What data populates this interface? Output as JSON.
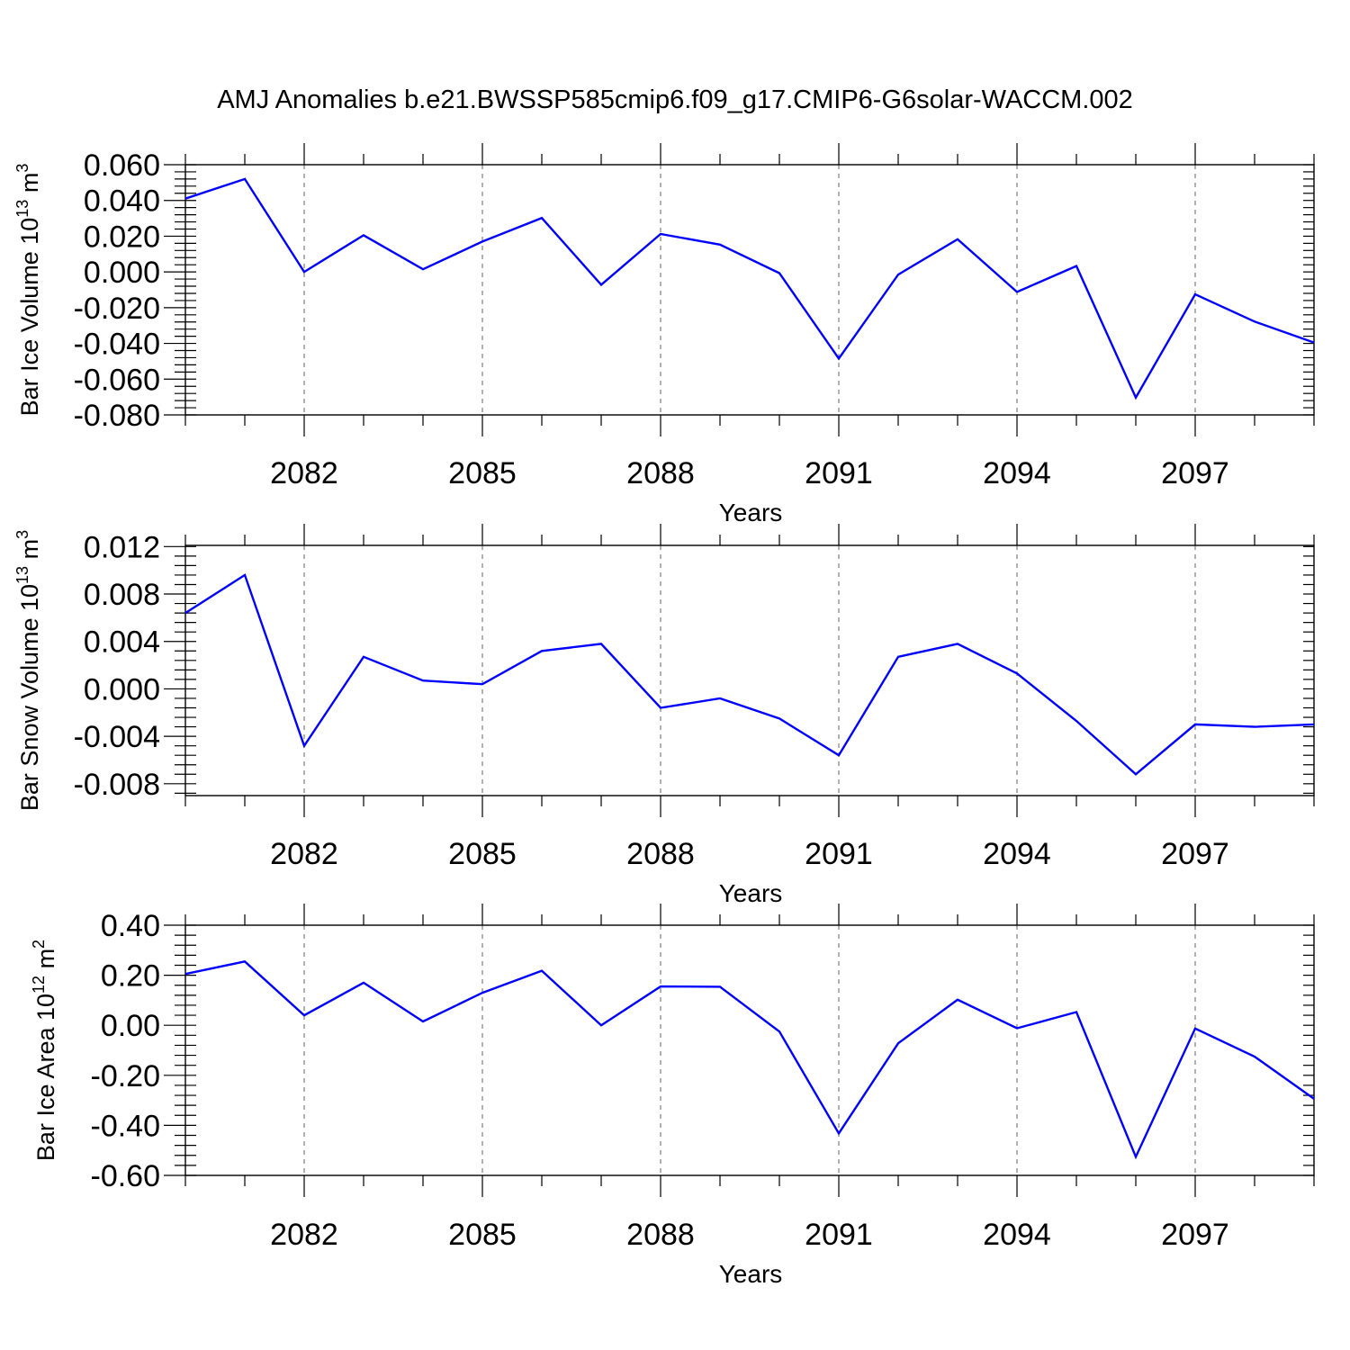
{
  "title": "AMJ Anomalies b.e21.BWSSP585cmip6.f09_g17.CMIP6-G6solar-WACCM.002",
  "line_color": "#0000ff",
  "chart_data": [
    {
      "type": "line",
      "xlabel": "Years",
      "ylabel": "Bar Ice Volume 10",
      "ylabel_sup": "13",
      "ylabel_unit": " m",
      "ylabel_unit_sup": "3",
      "xlim": [
        2080,
        2099
      ],
      "ylim": [
        -0.08,
        0.06
      ],
      "xticks": [
        2082,
        2085,
        2088,
        2091,
        2094,
        2097
      ],
      "xtick_labels": [
        "2082",
        "2085",
        "2088",
        "2091",
        "2094",
        "2097"
      ],
      "yticks": [
        -0.08,
        -0.06,
        -0.04,
        -0.02,
        0.0,
        0.02,
        0.04,
        0.06
      ],
      "ytick_labels": [
        "-0.080",
        "-0.060",
        "-0.040",
        "-0.020",
        "0.000",
        "0.020",
        "0.040",
        "0.060"
      ],
      "grid": "vertical dashed at labeled years",
      "x": [
        2080,
        2081,
        2082,
        2083,
        2084,
        2085,
        2086,
        2087,
        2088,
        2089,
        2090,
        2091,
        2092,
        2093,
        2094,
        2095,
        2096,
        2097,
        2098,
        2099
      ],
      "y": [
        0.041,
        0.052,
        0.0,
        0.0205,
        0.0015,
        0.017,
        0.0302,
        -0.0072,
        0.0212,
        0.0153,
        -0.0007,
        -0.0485,
        -0.0015,
        0.0183,
        -0.0112,
        0.0033,
        -0.0703,
        -0.0125,
        -0.0278,
        -0.0395
      ]
    },
    {
      "type": "line",
      "xlabel": "Years",
      "ylabel": "Bar Snow Volume 10",
      "ylabel_sup": "13",
      "ylabel_unit": " m",
      "ylabel_unit_sup": "3",
      "xlim": [
        2080,
        2099
      ],
      "ylim": [
        -0.009,
        0.0121
      ],
      "xticks": [
        2082,
        2085,
        2088,
        2091,
        2094,
        2097
      ],
      "xtick_labels": [
        "2082",
        "2085",
        "2088",
        "2091",
        "2094",
        "2097"
      ],
      "yticks": [
        -0.008,
        -0.004,
        0.0,
        0.004,
        0.008,
        0.012
      ],
      "ytick_labels": [
        "-0.008",
        "-0.004",
        "0.000",
        "0.004",
        "0.008",
        "0.012"
      ],
      "grid": "vertical dashed at labeled years",
      "x": [
        2080,
        2081,
        2082,
        2083,
        2084,
        2085,
        2086,
        2087,
        2088,
        2089,
        2090,
        2091,
        2092,
        2093,
        2094,
        2095,
        2096,
        2097,
        2098,
        2099
      ],
      "y": [
        0.0064,
        0.0096,
        -0.0048,
        0.0027,
        0.0007,
        0.0004,
        0.0032,
        0.0038,
        -0.0016,
        -0.0008,
        -0.0025,
        -0.0056,
        0.0027,
        0.0038,
        0.0013,
        -0.0027,
        -0.0072,
        -0.003,
        -0.0032,
        -0.003
      ]
    },
    {
      "type": "line",
      "xlabel": "Years",
      "ylabel": "Bar Ice Area 10",
      "ylabel_sup": "12",
      "ylabel_unit": " m",
      "ylabel_unit_sup": "2",
      "xlim": [
        2080,
        2099
      ],
      "ylim": [
        -0.6,
        0.4
      ],
      "xticks": [
        2082,
        2085,
        2088,
        2091,
        2094,
        2097
      ],
      "xtick_labels": [
        "2082",
        "2085",
        "2088",
        "2091",
        "2094",
        "2097"
      ],
      "yticks": [
        -0.6,
        -0.4,
        -0.2,
        0.0,
        0.2,
        0.4
      ],
      "ytick_labels": [
        "-0.60",
        "-0.40",
        "-0.20",
        "0.00",
        "0.20",
        "0.40"
      ],
      "grid": "vertical dashed at labeled years",
      "x": [
        2080,
        2081,
        2082,
        2083,
        2084,
        2085,
        2086,
        2087,
        2088,
        2089,
        2090,
        2091,
        2092,
        2093,
        2094,
        2095,
        2096,
        2097,
        2098,
        2099
      ],
      "y": [
        0.205,
        0.255,
        0.04,
        0.17,
        0.015,
        0.13,
        0.218,
        0.0,
        0.155,
        0.154,
        -0.025,
        -0.432,
        -0.072,
        0.102,
        -0.012,
        0.053,
        -0.526,
        -0.013,
        -0.125,
        -0.294
      ]
    }
  ]
}
